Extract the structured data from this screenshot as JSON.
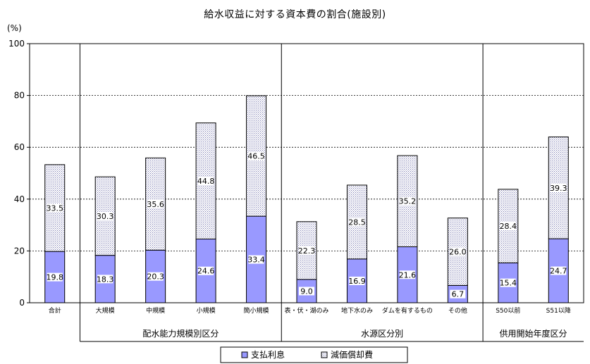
{
  "chart_data": {
    "type": "bar",
    "stacked": true,
    "title": "給水収益に対する資本費の割合(施設別)",
    "ylabel": "(%)",
    "ylim": [
      0,
      100
    ],
    "yticks": [
      0,
      20,
      40,
      60,
      80,
      100
    ],
    "grid": true,
    "legend_position": "bottom",
    "categories": [
      "合計",
      "大規模",
      "中規模",
      "小規模",
      "簡小規模",
      "表・伏・湖のみ",
      "地下水のみ",
      "ダムを有するもの",
      "その他",
      "S50以前",
      "S51以降"
    ],
    "groups": [
      {
        "label": "配水能力規模別区分",
        "categories": [
          "大規模",
          "中規模",
          "小規模",
          "簡小規模"
        ]
      },
      {
        "label": "水源区分別",
        "categories": [
          "表・伏・湖のみ",
          "地下水のみ",
          "ダムを有するもの",
          "その他"
        ]
      },
      {
        "label": "供用開始年度区分",
        "categories": [
          "S50以前",
          "S51以降"
        ]
      }
    ],
    "series": [
      {
        "name": "支払利息",
        "color": "#9999ff",
        "values": [
          19.8,
          18.3,
          20.3,
          24.6,
          33.4,
          9.0,
          16.9,
          21.6,
          6.7,
          15.4,
          24.7
        ]
      },
      {
        "name": "減価償却費",
        "color": "#ffffff",
        "pattern": "dotted",
        "values": [
          33.5,
          30.3,
          35.6,
          44.8,
          46.5,
          22.3,
          28.5,
          35.2,
          26.0,
          28.4,
          39.3
        ]
      }
    ]
  }
}
